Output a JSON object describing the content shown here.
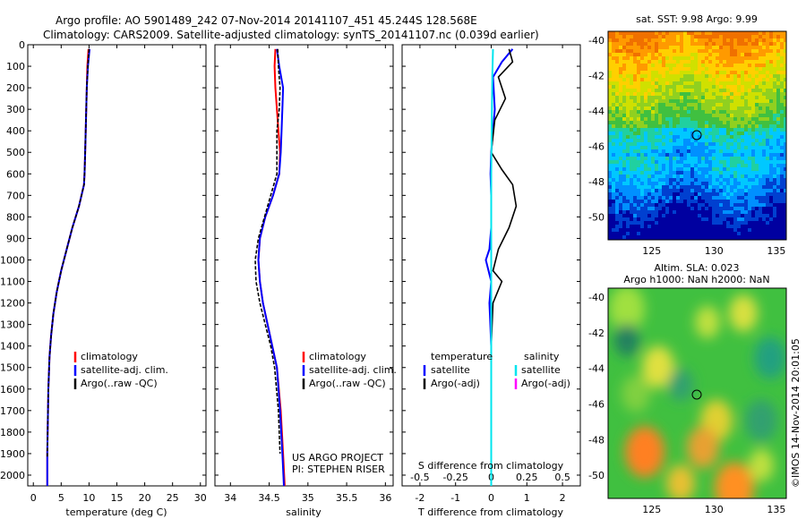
{
  "title": {
    "line1": "Argo profile: AO 5901489_242 07-Nov-2014 20141107_451 45.244S 128.568E",
    "line2": "Climatology: CARS2009. Satellite-adjusted climatology: synTS_20141107.nc (0.039d earlier)"
  },
  "colors": {
    "climatology": "#ff0000",
    "satellite": "#0000ff",
    "argo": "#000000",
    "salinity_satellite": "#00e5ee",
    "salinity_argo": "#ff00ff"
  },
  "chart_data": [
    {
      "type": "line",
      "panel": "temperature",
      "xlabel": "temperature (deg C)",
      "xlim": [
        -1,
        31
      ],
      "ylim": [
        2050,
        0
      ],
      "xticks": [
        "0",
        "5",
        "10",
        "15",
        "20",
        "25",
        "30"
      ],
      "yticks": [
        "0",
        "100",
        "200",
        "300",
        "400",
        "500",
        "600",
        "700",
        "800",
        "900",
        "1000",
        "1100",
        "1200",
        "1300",
        "1400",
        "1500",
        "1600",
        "1700",
        "1800",
        "1900",
        "2000"
      ],
      "legend": [
        "climatology",
        "satellite-adj. clim.",
        "Argo(..raw -QC)"
      ],
      "series": [
        {
          "name": "climatology",
          "color": "red",
          "x": [
            9.9,
            9.7,
            9.6,
            9.5,
            9.4,
            9.3,
            9.2,
            9.1,
            8.2,
            7.0,
            6.0,
            5.0,
            4.2,
            3.6,
            3.2,
            2.9,
            2.7,
            2.6,
            2.5,
            2.5
          ],
          "y": [
            20,
            100,
            200,
            300,
            400,
            500,
            600,
            650,
            750,
            850,
            950,
            1050,
            1150,
            1250,
            1350,
            1450,
            1600,
            1750,
            1900,
            2050
          ]
        },
        {
          "name": "satellite-adj. clim.",
          "color": "blue",
          "x": [
            10.1,
            9.8,
            9.6,
            9.5,
            9.4,
            9.3,
            9.2,
            9.1,
            8.2,
            7.0,
            6.0,
            5.0,
            4.2,
            3.6,
            3.2,
            2.9,
            2.7,
            2.6,
            2.5,
            2.5
          ],
          "y": [
            20,
            100,
            200,
            300,
            400,
            500,
            600,
            650,
            750,
            850,
            950,
            1050,
            1150,
            1250,
            1350,
            1450,
            1600,
            1750,
            1900,
            2050
          ]
        },
        {
          "name": "Argo(..raw -QC)",
          "color": "black",
          "x": [
            10.0,
            9.8,
            9.6,
            9.5,
            9.4,
            9.3,
            9.2,
            9.1,
            8.2,
            7.0,
            6.0,
            5.0,
            4.2,
            3.6,
            3.2,
            2.9,
            2.7,
            2.6,
            2.5
          ],
          "y": [
            20,
            100,
            200,
            300,
            400,
            500,
            600,
            650,
            750,
            850,
            950,
            1050,
            1150,
            1250,
            1350,
            1450,
            1600,
            1750,
            1920
          ]
        }
      ]
    },
    {
      "type": "line",
      "panel": "salinity",
      "xlabel": "salinity",
      "xlim": [
        33.8,
        36.1
      ],
      "ylim": [
        2050,
        0
      ],
      "xticks": [
        "34",
        "34.5",
        "35",
        "35.5",
        "36"
      ],
      "legend": [
        "climatology",
        "satellite-adj. clim.",
        "Argo(..raw -QC)"
      ],
      "annotations": [
        "US ARGO PROJECT",
        "PI: STEPHEN RISER"
      ],
      "series": [
        {
          "name": "climatology",
          "color": "red",
          "x": [
            34.58,
            34.57,
            34.58,
            34.6,
            34.62,
            34.64,
            34.63,
            34.55,
            34.45,
            34.38,
            34.36,
            34.38,
            34.42,
            34.48,
            34.54,
            34.6,
            34.65,
            34.68,
            34.7
          ],
          "y": [
            20,
            100,
            200,
            300,
            400,
            500,
            600,
            700,
            800,
            900,
            1000,
            1100,
            1200,
            1300,
            1400,
            1500,
            1700,
            1900,
            2050
          ]
        },
        {
          "name": "satellite-adj. clim.",
          "color": "blue",
          "x": [
            34.6,
            34.63,
            34.68,
            34.67,
            34.66,
            34.65,
            34.63,
            34.55,
            34.45,
            34.38,
            34.36,
            34.38,
            34.42,
            34.48,
            34.54,
            34.6,
            34.64,
            34.67,
            34.69
          ],
          "y": [
            20,
            100,
            200,
            300,
            400,
            500,
            600,
            700,
            800,
            900,
            1000,
            1100,
            1200,
            1300,
            1400,
            1500,
            1700,
            1900,
            2050
          ]
        },
        {
          "name": "Argo(..raw -QC)",
          "color": "black",
          "x": [
            34.61,
            34.62,
            34.64,
            34.63,
            34.6,
            34.6,
            34.6,
            34.52,
            34.44,
            34.36,
            34.32,
            34.33,
            34.38,
            34.45,
            34.52,
            34.57,
            34.62,
            34.64
          ],
          "y": [
            20,
            100,
            200,
            300,
            400,
            500,
            600,
            700,
            800,
            900,
            1000,
            1100,
            1200,
            1300,
            1400,
            1500,
            1700,
            1900
          ]
        }
      ]
    },
    {
      "type": "line",
      "panel": "difference",
      "xlabel": "T difference from climatology",
      "xlabel2": "S difference from climatology",
      "xlim": [
        -2.5,
        2.5
      ],
      "ylim": [
        2050,
        0
      ],
      "xticks": [
        "-2",
        "-1",
        "0",
        "1",
        "2"
      ],
      "xticks2": [
        "-0.5",
        "-0.25",
        "0",
        "0.25",
        "0.5"
      ],
      "legend_left_title": "temperature",
      "legend_right_title": "salinity",
      "legend": [
        "satellite",
        "Argo(-adj)",
        "satellite",
        "Argo(-adj)"
      ],
      "series": [
        {
          "name": "temperature satellite",
          "color": "blue",
          "x": [
            0.6,
            0.3,
            0.05,
            0.1,
            0.05,
            0.0,
            -0.02,
            0.0,
            0.0,
            -0.05,
            -0.15,
            0.0,
            -0.05,
            0.0,
            0.0,
            0.0
          ],
          "y": [
            20,
            80,
            150,
            300,
            400,
            500,
            600,
            700,
            850,
            950,
            1000,
            1100,
            1200,
            1400,
            1600,
            1900
          ]
        },
        {
          "name": "temperature Argo(-adj)",
          "color": "black",
          "x": [
            0.5,
            0.6,
            0.2,
            0.4,
            0.1,
            0.0,
            0.3,
            0.6,
            0.7,
            0.5,
            0.2,
            0.05,
            0.3,
            0.05,
            0.0,
            0.0,
            0.0
          ],
          "y": [
            20,
            80,
            150,
            250,
            350,
            500,
            580,
            650,
            750,
            850,
            950,
            1050,
            1100,
            1200,
            1400,
            1600,
            1900
          ]
        },
        {
          "name": "salinity satellite",
          "color": "cyan",
          "x": [
            0.05,
            0.03,
            0.02,
            0.01,
            0.0,
            0.0,
            0.0,
            0.0,
            0.0,
            0.0,
            0.0
          ],
          "y": [
            20,
            150,
            300,
            450,
            600,
            800,
            1000,
            1300,
            1600,
            1900,
            2050
          ]
        }
      ]
    },
    {
      "type": "heatmap",
      "panel": "sst-map",
      "title": "sat. SST: 9.98 Argo: 9.99",
      "xlim": [
        121.5,
        135.8
      ],
      "ylim": [
        -51.3,
        -39.5
      ],
      "xticks": [
        "125",
        "130",
        "135"
      ],
      "yticks": [
        "-40",
        "-42",
        "-44",
        "-46",
        "-48",
        "-50"
      ],
      "marker": {
        "lon": 128.568,
        "lat": -45.244
      }
    },
    {
      "type": "heatmap",
      "panel": "sla-map",
      "title": "Altim. SLA: 0.023",
      "subtitle": "Argo h1000: NaN h2000: NaN",
      "xlim": [
        121.5,
        135.8
      ],
      "ylim": [
        -51.3,
        -39.5
      ],
      "xticks": [
        "125",
        "130",
        "135"
      ],
      "yticks": [
        "-40",
        "-42",
        "-44",
        "-46",
        "-48",
        "-50"
      ],
      "marker": {
        "lon": 128.568,
        "lat": -45.244
      }
    }
  ],
  "footer": {
    "stamp": "©IMOS 14-Nov-2014 20:01:05"
  }
}
